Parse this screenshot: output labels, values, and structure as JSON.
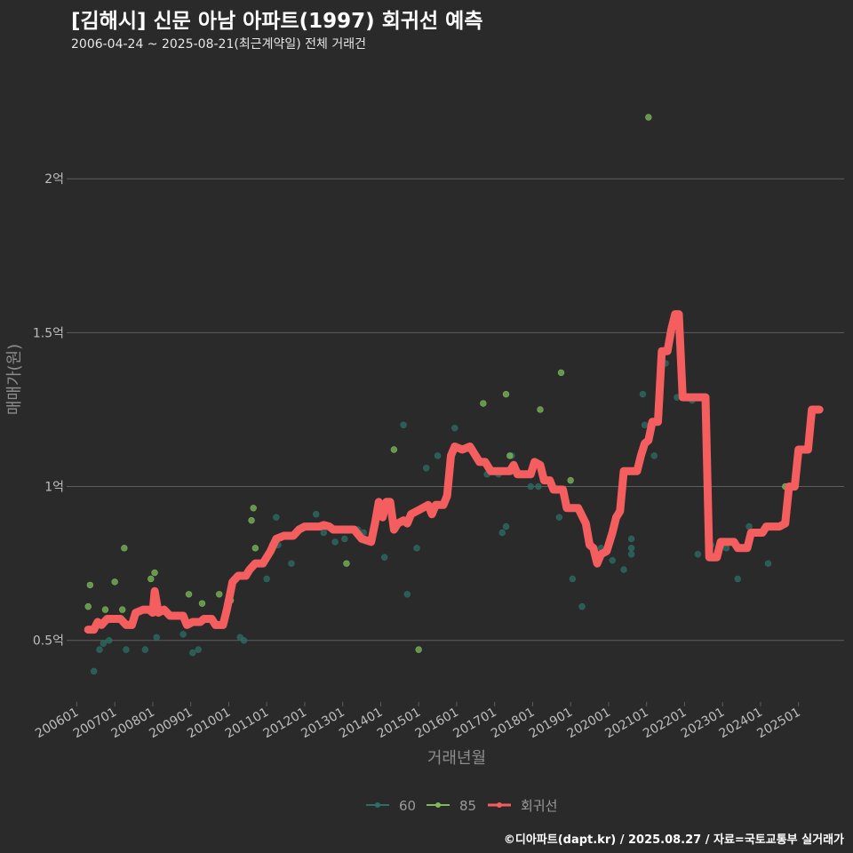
{
  "header": {
    "title": "[김해시] 신문 아남 아파트(1997) 회귀선 예측",
    "subtitle": "2006-04-24 ~ 2025-08-21(최근계약일) 전체 거래건"
  },
  "caption": "©디아파트(dapt.kr) / 2025.08.27 / 자료=국토교통부 실거래가",
  "colors": {
    "background": "#2b2a2b",
    "grid": "#5e5e5e",
    "series_60": "#2c6e66",
    "series_85": "#7dbb5a",
    "regression": "#f55e5e"
  },
  "chart_data": {
    "type": "scatter",
    "title": "[김해시] 신문 아남 아파트(1997) 회귀선 예측",
    "subtitle": "2006-04-24 ~ 2025-08-21(최근계약일) 전체 거래건",
    "xlabel": "거래년월",
    "ylabel": "매매가(원)",
    "xlim": [
      2005.85,
      2026.2
    ],
    "ylim": [
      0.3,
      2.35
    ],
    "y_unit": "억",
    "yticks": [
      {
        "value": 0.5,
        "label": "0.5억"
      },
      {
        "value": 1.0,
        "label": "1억"
      },
      {
        "value": 1.5,
        "label": "1.5억"
      },
      {
        "value": 2.0,
        "label": "2억"
      }
    ],
    "xticks": [
      {
        "value": 2006,
        "label": "200601"
      },
      {
        "value": 2007,
        "label": "200701"
      },
      {
        "value": 2008,
        "label": "200801"
      },
      {
        "value": 2009,
        "label": "200901"
      },
      {
        "value": 2010,
        "label": "201001"
      },
      {
        "value": 2011,
        "label": "201101"
      },
      {
        "value": 2012,
        "label": "201201"
      },
      {
        "value": 2013,
        "label": "201301"
      },
      {
        "value": 2014,
        "label": "201401"
      },
      {
        "value": 2015,
        "label": "201501"
      },
      {
        "value": 2016,
        "label": "201601"
      },
      {
        "value": 2017,
        "label": "201701"
      },
      {
        "value": 2018,
        "label": "201801"
      },
      {
        "value": 2019,
        "label": "201901"
      },
      {
        "value": 2020,
        "label": "202001"
      },
      {
        "value": 2021,
        "label": "202101"
      },
      {
        "value": 2022,
        "label": "202201"
      },
      {
        "value": 2023,
        "label": "202301"
      },
      {
        "value": 2024,
        "label": "202401"
      },
      {
        "value": 2025,
        "label": "202501"
      }
    ],
    "legend": {
      "position": "bottom",
      "labels": [
        "60",
        "85",
        "회귀선"
      ]
    },
    "series": [
      {
        "name": "60",
        "kind": "points",
        "points": [
          [
            2006.45,
            0.4
          ],
          [
            2006.6,
            0.47
          ],
          [
            2006.7,
            0.49
          ],
          [
            2006.85,
            0.5
          ],
          [
            2007.3,
            0.47
          ],
          [
            2007.8,
            0.47
          ],
          [
            2008.1,
            0.51
          ],
          [
            2008.8,
            0.52
          ],
          [
            2009.05,
            0.46
          ],
          [
            2009.2,
            0.47
          ],
          [
            2010.3,
            0.51
          ],
          [
            2010.4,
            0.5
          ],
          [
            2011.0,
            0.7
          ],
          [
            2011.25,
            0.9
          ],
          [
            2011.3,
            0.81
          ],
          [
            2011.65,
            0.75
          ],
          [
            2012.3,
            0.91
          ],
          [
            2012.5,
            0.85
          ],
          [
            2012.8,
            0.82
          ],
          [
            2013.05,
            0.83
          ],
          [
            2013.4,
            0.86
          ],
          [
            2013.55,
            0.85
          ],
          [
            2014.1,
            0.77
          ],
          [
            2014.6,
            1.2
          ],
          [
            2014.7,
            0.65
          ],
          [
            2014.95,
            0.8
          ],
          [
            2015.2,
            1.06
          ],
          [
            2015.5,
            1.1
          ],
          [
            2015.95,
            1.19
          ],
          [
            2016.55,
            1.09
          ],
          [
            2016.8,
            1.04
          ],
          [
            2017.1,
            1.04
          ],
          [
            2017.2,
            0.85
          ],
          [
            2017.3,
            0.87
          ],
          [
            2017.45,
            1.1
          ],
          [
            2017.6,
            1.05
          ],
          [
            2017.95,
            1.0
          ],
          [
            2018.15,
            1.0
          ],
          [
            2018.3,
            1.03
          ],
          [
            2018.7,
            0.9
          ],
          [
            2019.05,
            0.7
          ],
          [
            2019.3,
            0.61
          ],
          [
            2019.8,
            0.8
          ],
          [
            2020.1,
            0.76
          ],
          [
            2020.4,
            0.73
          ],
          [
            2020.6,
            0.83
          ],
          [
            2020.6,
            0.8
          ],
          [
            2020.6,
            0.78
          ],
          [
            2020.9,
            1.3
          ],
          [
            2020.95,
            1.2
          ],
          [
            2021.2,
            1.1
          ],
          [
            2021.5,
            1.4
          ],
          [
            2021.8,
            1.29
          ],
          [
            2022.2,
            1.28
          ],
          [
            2022.35,
            0.78
          ],
          [
            2022.7,
            0.81
          ],
          [
            2023.1,
            0.8
          ],
          [
            2023.4,
            0.7
          ],
          [
            2023.7,
            0.87
          ],
          [
            2024.2,
            0.75
          ]
        ]
      },
      {
        "name": "85",
        "kind": "points",
        "points": [
          [
            2006.3,
            0.61
          ],
          [
            2006.35,
            0.68
          ],
          [
            2006.75,
            0.6
          ],
          [
            2007.0,
            0.69
          ],
          [
            2007.2,
            0.6
          ],
          [
            2007.25,
            0.8
          ],
          [
            2007.95,
            0.7
          ],
          [
            2008.05,
            0.72
          ],
          [
            2008.95,
            0.65
          ],
          [
            2009.3,
            0.62
          ],
          [
            2009.75,
            0.65
          ],
          [
            2010.05,
            0.63
          ],
          [
            2010.6,
            0.89
          ],
          [
            2010.65,
            0.93
          ],
          [
            2010.7,
            0.8
          ],
          [
            2011.15,
            0.81
          ],
          [
            2013.1,
            0.75
          ],
          [
            2014.35,
            1.12
          ],
          [
            2015.0,
            0.47
          ],
          [
            2016.7,
            1.27
          ],
          [
            2017.3,
            1.3
          ],
          [
            2017.4,
            1.1
          ],
          [
            2018.2,
            1.25
          ],
          [
            2018.75,
            1.37
          ],
          [
            2019.0,
            1.02
          ],
          [
            2021.05,
            2.2
          ],
          [
            2024.65,
            1.0
          ]
        ]
      },
      {
        "name": "회귀선",
        "kind": "line",
        "points": [
          [
            2006.3,
            0.535
          ],
          [
            2006.45,
            0.535
          ],
          [
            2006.55,
            0.56
          ],
          [
            2006.65,
            0.55
          ],
          [
            2006.8,
            0.57
          ],
          [
            2007.15,
            0.57
          ],
          [
            2007.3,
            0.55
          ],
          [
            2007.45,
            0.55
          ],
          [
            2007.55,
            0.59
          ],
          [
            2007.75,
            0.6
          ],
          [
            2007.9,
            0.6
          ],
          [
            2008.0,
            0.59
          ],
          [
            2008.05,
            0.66
          ],
          [
            2008.15,
            0.59
          ],
          [
            2008.3,
            0.6
          ],
          [
            2008.45,
            0.58
          ],
          [
            2008.8,
            0.58
          ],
          [
            2008.9,
            0.55
          ],
          [
            2009.05,
            0.56
          ],
          [
            2009.25,
            0.56
          ],
          [
            2009.35,
            0.57
          ],
          [
            2009.55,
            0.57
          ],
          [
            2009.65,
            0.55
          ],
          [
            2009.85,
            0.55
          ],
          [
            2009.95,
            0.6
          ],
          [
            2010.1,
            0.69
          ],
          [
            2010.25,
            0.71
          ],
          [
            2010.45,
            0.71
          ],
          [
            2010.55,
            0.73
          ],
          [
            2010.7,
            0.75
          ],
          [
            2010.9,
            0.75
          ],
          [
            2011.1,
            0.79
          ],
          [
            2011.25,
            0.83
          ],
          [
            2011.45,
            0.84
          ],
          [
            2011.7,
            0.84
          ],
          [
            2011.85,
            0.86
          ],
          [
            2012.0,
            0.87
          ],
          [
            2012.4,
            0.87
          ],
          [
            2012.5,
            0.875
          ],
          [
            2012.65,
            0.87
          ],
          [
            2012.75,
            0.86
          ],
          [
            2013.3,
            0.86
          ],
          [
            2013.5,
            0.83
          ],
          [
            2013.75,
            0.82
          ],
          [
            2013.85,
            0.88
          ],
          [
            2013.95,
            0.95
          ],
          [
            2014.05,
            0.9
          ],
          [
            2014.15,
            0.95
          ],
          [
            2014.25,
            0.95
          ],
          [
            2014.35,
            0.86
          ],
          [
            2014.45,
            0.88
          ],
          [
            2014.6,
            0.89
          ],
          [
            2014.7,
            0.88
          ],
          [
            2014.8,
            0.91
          ],
          [
            2014.95,
            0.92
          ],
          [
            2015.1,
            0.93
          ],
          [
            2015.25,
            0.94
          ],
          [
            2015.35,
            0.91
          ],
          [
            2015.45,
            0.94
          ],
          [
            2015.65,
            0.94
          ],
          [
            2015.75,
            0.97
          ],
          [
            2015.85,
            1.1
          ],
          [
            2015.95,
            1.13
          ],
          [
            2016.15,
            1.12
          ],
          [
            2016.35,
            1.13
          ],
          [
            2016.5,
            1.1
          ],
          [
            2016.6,
            1.08
          ],
          [
            2016.75,
            1.08
          ],
          [
            2016.9,
            1.05
          ],
          [
            2017.4,
            1.05
          ],
          [
            2017.5,
            1.07
          ],
          [
            2017.6,
            1.04
          ],
          [
            2017.95,
            1.04
          ],
          [
            2018.05,
            1.08
          ],
          [
            2018.2,
            1.07
          ],
          [
            2018.3,
            1.02
          ],
          [
            2018.45,
            1.02
          ],
          [
            2018.55,
            0.99
          ],
          [
            2018.8,
            0.99
          ],
          [
            2018.9,
            0.93
          ],
          [
            2019.2,
            0.93
          ],
          [
            2019.4,
            0.88
          ],
          [
            2019.5,
            0.81
          ],
          [
            2019.6,
            0.8
          ],
          [
            2019.7,
            0.75
          ],
          [
            2019.8,
            0.78
          ],
          [
            2019.95,
            0.79
          ],
          [
            2020.1,
            0.85
          ],
          [
            2020.2,
            0.9
          ],
          [
            2020.3,
            0.92
          ],
          [
            2020.4,
            1.05
          ],
          [
            2020.75,
            1.05
          ],
          [
            2020.85,
            1.1
          ],
          [
            2020.95,
            1.14
          ],
          [
            2021.05,
            1.15
          ],
          [
            2021.15,
            1.21
          ],
          [
            2021.3,
            1.21
          ],
          [
            2021.4,
            1.44
          ],
          [
            2021.55,
            1.44
          ],
          [
            2021.65,
            1.51
          ],
          [
            2021.75,
            1.56
          ],
          [
            2021.85,
            1.56
          ],
          [
            2021.95,
            1.29
          ],
          [
            2022.55,
            1.29
          ],
          [
            2022.65,
            0.77
          ],
          [
            2022.85,
            0.77
          ],
          [
            2022.95,
            0.82
          ],
          [
            2023.3,
            0.82
          ],
          [
            2023.4,
            0.8
          ],
          [
            2023.65,
            0.8
          ],
          [
            2023.75,
            0.85
          ],
          [
            2024.05,
            0.85
          ],
          [
            2024.15,
            0.87
          ],
          [
            2024.5,
            0.87
          ],
          [
            2024.65,
            0.88
          ],
          [
            2024.75,
            1.0
          ],
          [
            2024.9,
            1.0
          ],
          [
            2025.0,
            1.12
          ],
          [
            2025.25,
            1.12
          ],
          [
            2025.35,
            1.25
          ],
          [
            2025.55,
            1.25
          ]
        ]
      }
    ]
  }
}
